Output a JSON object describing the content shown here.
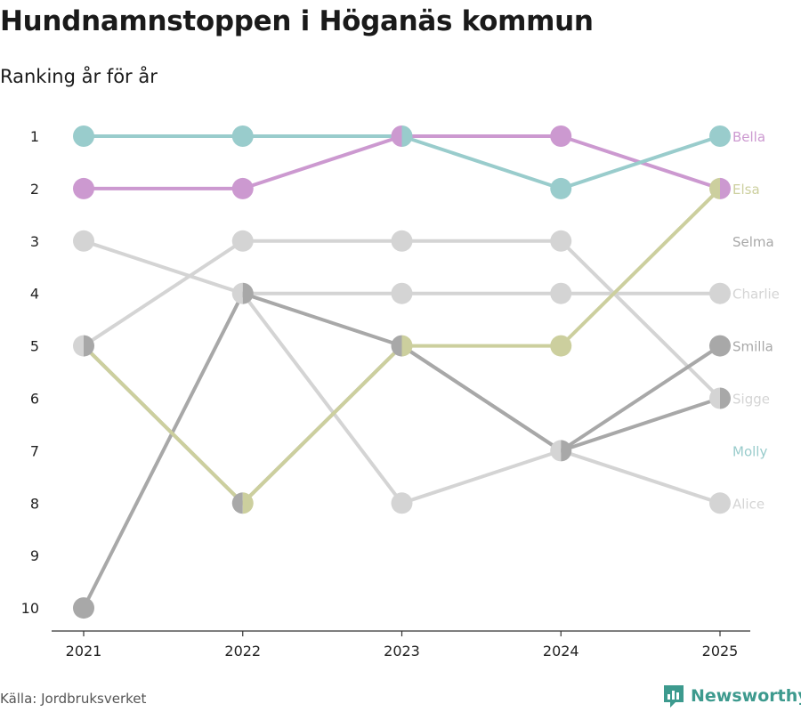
{
  "header": {
    "title": "Hundnamnstoppen i Höganäs kommun",
    "subtitle": "Ranking år för år"
  },
  "footer": {
    "source": "Källa: Jordbruksverket",
    "brand": "Newsworthy",
    "brand_color": "#3d9a8e"
  },
  "chart_data": {
    "type": "line",
    "title": "Hundnamnstoppen i Höganäs kommun",
    "subtitle": "Ranking år för år",
    "xlabel": "",
    "ylabel": "",
    "x": [
      "2021",
      "2022",
      "2023",
      "2024",
      "2025"
    ],
    "y_ticks": [
      "1",
      "2",
      "3",
      "4",
      "5",
      "6",
      "7",
      "8",
      "9",
      "10"
    ],
    "ylim": [
      1,
      10
    ],
    "y_inverted": true,
    "grid": false,
    "series": [
      {
        "name": "Charlie",
        "color": "#d4d4d4",
        "values": [
          3,
          4,
          4,
          4,
          4
        ]
      },
      {
        "name": "Sigge",
        "color": "#d4d4d4",
        "values": [
          5,
          3,
          3,
          3,
          6
        ]
      },
      {
        "name": "Alice",
        "color": "#d4d4d4",
        "values": [
          null,
          4,
          8,
          7,
          8
        ]
      },
      {
        "name": "Smilla",
        "color": "#a8a8a8",
        "values": [
          10,
          4,
          5,
          7,
          6
        ]
      },
      {
        "name": "Selma",
        "color": "#a8a8a8",
        "values": [
          5,
          8,
          5,
          7,
          5
        ]
      },
      {
        "name": "Elsa",
        "color": "#cccf9e",
        "values": [
          5,
          8,
          5,
          5,
          2
        ]
      },
      {
        "name": "Bella",
        "color": "#cc99d0",
        "values": [
          2,
          2,
          1,
          1,
          2
        ]
      },
      {
        "name": "Molly",
        "color": "#99cccc",
        "values": [
          1,
          1,
          1,
          2,
          1
        ]
      }
    ]
  }
}
